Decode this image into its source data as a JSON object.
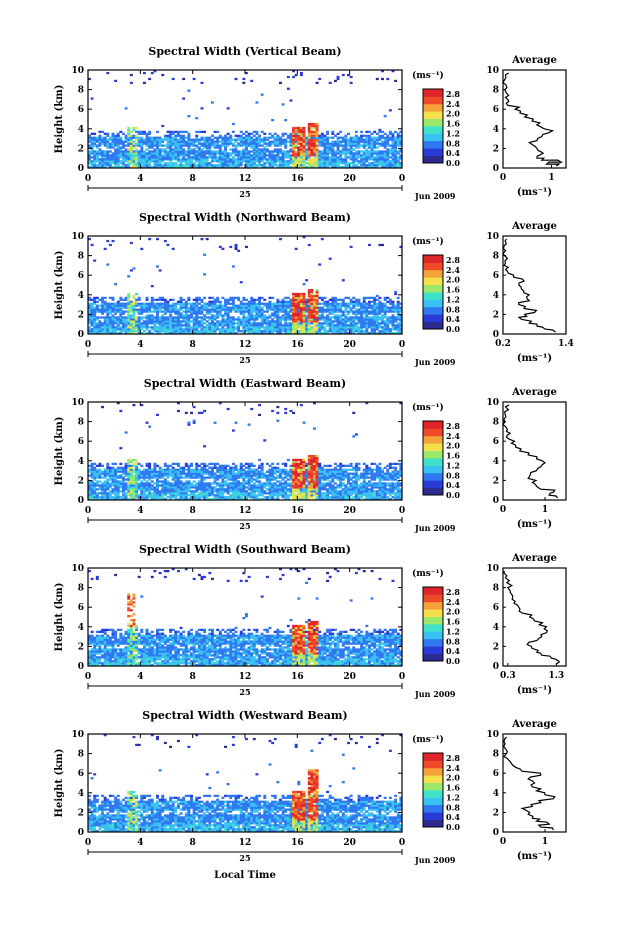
{
  "figure": {
    "xlabel_main": "Local Time",
    "date_label": "Jun 2009",
    "day_label": "25",
    "colorbar_unit": "(ms⁻¹)",
    "avg_title": "Average",
    "avg_xlabel": "(ms⁻¹)",
    "ylabel": "Height (km)",
    "colors": [
      "#2b2b8f",
      "#2a3ad6",
      "#2f78f0",
      "#39c1f2",
      "#3fe2c8",
      "#9be86a",
      "#f3e04a",
      "#f6a23a",
      "#ee4a2a",
      "#e0252a"
    ]
  },
  "chart_data": [
    {
      "type": "heatmap",
      "title": "Spectral Width (Vertical Beam)",
      "xlabel": "Local Time",
      "ylabel": "Height (km)",
      "x_ticks": [
        "0",
        "4",
        "8",
        "12",
        "16",
        "20",
        "0"
      ],
      "y_ticks": [
        "0",
        "2",
        "4",
        "6",
        "8",
        "10"
      ],
      "xlim": [
        0,
        24
      ],
      "ylim": [
        0,
        10
      ],
      "colorbar": {
        "label": "(ms⁻¹)",
        "ticks": [
          "0.0",
          "0.4",
          "0.8",
          "1.2",
          "1.6",
          "2.0",
          "2.4",
          "2.8"
        ],
        "range": [
          0,
          3.0
        ]
      },
      "average": {
        "x_ticks": [
          "0",
          "1"
        ],
        "xlim": [
          0,
          1.3
        ],
        "xlabel": "(ms⁻¹)",
        "height": [
          0.2,
          0.4,
          0.6,
          0.8,
          1.0,
          1.3,
          1.6,
          2.0,
          2.4,
          2.8,
          3.2,
          3.6,
          4.0,
          4.4,
          4.8,
          5.2,
          5.6,
          6.0,
          6.4,
          6.8,
          7.2,
          7.6,
          8.0,
          8.5,
          9.0,
          9.5
        ],
        "width": [
          1.1,
          0.9,
          1.2,
          0.8,
          0.7,
          0.75,
          0.8,
          0.7,
          0.6,
          0.7,
          0.8,
          0.95,
          0.85,
          0.7,
          0.6,
          0.45,
          0.35,
          0.25,
          0.1,
          0.12,
          0.05,
          0.08,
          0.04,
          0.06,
          0.03,
          0.05
        ]
      }
    },
    {
      "type": "heatmap",
      "title": "Spectral Width (Northward Beam)",
      "xlabel": "Local Time",
      "ylabel": "Height (km)",
      "x_ticks": [
        "0",
        "4",
        "8",
        "12",
        "16",
        "20",
        "0"
      ],
      "y_ticks": [
        "0",
        "2",
        "4",
        "6",
        "8",
        "10"
      ],
      "xlim": [
        0,
        24
      ],
      "ylim": [
        0,
        10
      ],
      "colorbar": {
        "label": "(ms⁻¹)",
        "ticks": [
          "0.0",
          "0.4",
          "0.8",
          "1.2",
          "1.6",
          "2.0",
          "2.4",
          "2.8"
        ],
        "range": [
          0,
          3.0
        ]
      },
      "average": {
        "x_ticks": [
          "0.2",
          "1.4"
        ],
        "xlim": [
          0.2,
          1.4
        ],
        "xlabel": "(ms⁻¹)",
        "height": [
          0.2,
          0.5,
          0.8,
          1.1,
          1.5,
          1.8,
          2.2,
          2.6,
          3.0,
          3.4,
          3.8,
          4.2,
          4.6,
          5.0,
          5.4,
          5.8,
          6.2,
          6.6,
          7.0,
          7.5,
          8.0,
          8.5,
          9.0,
          9.5
        ],
        "width": [
          1.2,
          1.0,
          0.85,
          0.7,
          0.55,
          0.65,
          0.8,
          0.6,
          0.5,
          0.7,
          0.65,
          0.6,
          0.55,
          0.5,
          0.6,
          0.4,
          0.3,
          0.25,
          0.22,
          0.24,
          0.23,
          0.25,
          0.22,
          0.24
        ]
      }
    },
    {
      "type": "heatmap",
      "title": "Spectral Width (Eastward Beam)",
      "xlabel": "Local Time",
      "ylabel": "Height (km)",
      "x_ticks": [
        "0",
        "4",
        "8",
        "12",
        "16",
        "20",
        "0"
      ],
      "y_ticks": [
        "0",
        "2",
        "4",
        "6",
        "8",
        "10"
      ],
      "xlim": [
        0,
        24
      ],
      "ylim": [
        0,
        10
      ],
      "colorbar": {
        "label": "(ms⁻¹)",
        "ticks": [
          "0.0",
          "0.4",
          "0.8",
          "1.2",
          "1.6",
          "2.0",
          "2.4",
          "2.8"
        ],
        "range": [
          0,
          3.0
        ]
      },
      "average": {
        "x_ticks": [
          "0",
          "1"
        ],
        "xlim": [
          0,
          1.5
        ],
        "xlabel": "(ms⁻¹)",
        "height": [
          0.2,
          0.5,
          0.8,
          1.1,
          1.4,
          1.8,
          2.2,
          2.6,
          3.0,
          3.4,
          3.8,
          4.2,
          4.6,
          5.0,
          5.4,
          5.8,
          6.2,
          6.6,
          7.0,
          7.5,
          8.0,
          8.5,
          9.0,
          9.5
        ],
        "width": [
          1.3,
          1.1,
          1.2,
          0.9,
          0.8,
          0.7,
          0.6,
          0.65,
          0.8,
          0.9,
          1.0,
          0.8,
          0.6,
          0.4,
          0.3,
          0.2,
          0.15,
          0.1,
          0.08,
          0.06,
          0.05,
          0.07,
          0.04,
          0.06
        ]
      }
    },
    {
      "type": "heatmap",
      "title": "Spectral Width (Southward Beam)",
      "xlabel": "Local Time",
      "ylabel": "Height (km)",
      "x_ticks": [
        "0",
        "4",
        "8",
        "12",
        "16",
        "20",
        "0"
      ],
      "y_ticks": [
        "0",
        "2",
        "4",
        "6",
        "8",
        "10"
      ],
      "xlim": [
        0,
        24
      ],
      "ylim": [
        0,
        10
      ],
      "colorbar": {
        "label": "(ms⁻¹)",
        "ticks": [
          "0.0",
          "0.4",
          "0.8",
          "1.2",
          "1.6",
          "2.0",
          "2.4",
          "2.8"
        ],
        "range": [
          0,
          3.0
        ]
      },
      "average": {
        "x_ticks": [
          "0.3",
          "1.3"
        ],
        "xlim": [
          0.2,
          1.5
        ],
        "xlabel": "(ms⁻¹)",
        "height": [
          0.2,
          0.5,
          0.8,
          1.1,
          1.4,
          1.8,
          2.2,
          2.6,
          3.0,
          3.4,
          3.8,
          4.2,
          4.6,
          5.0,
          5.4,
          5.8,
          6.2,
          6.6,
          7.0,
          7.5,
          8.0,
          8.5,
          9.0,
          9.5
        ],
        "width": [
          1.3,
          1.35,
          1.2,
          1.0,
          0.9,
          0.8,
          0.7,
          0.9,
          1.0,
          1.1,
          1.05,
          0.95,
          0.85,
          0.75,
          0.6,
          0.55,
          0.5,
          0.45,
          0.4,
          0.35,
          0.3,
          0.28,
          0.25,
          0.22
        ]
      }
    },
    {
      "type": "heatmap",
      "title": "Spectral Width (Westward Beam)",
      "xlabel": "Local Time",
      "ylabel": "Height (km)",
      "x_ticks": [
        "0",
        "4",
        "8",
        "12",
        "16",
        "20",
        "0"
      ],
      "y_ticks": [
        "0",
        "2",
        "4",
        "6",
        "8",
        "10"
      ],
      "xlim": [
        0,
        24
      ],
      "ylim": [
        0,
        10
      ],
      "colorbar": {
        "label": "(ms⁻¹)",
        "ticks": [
          "0.0",
          "0.4",
          "0.8",
          "1.2",
          "1.6",
          "2.0",
          "2.4",
          "2.8"
        ],
        "range": [
          0,
          3.0
        ]
      },
      "average": {
        "x_ticks": [
          "0",
          "1"
        ],
        "xlim": [
          0,
          1.5
        ],
        "xlabel": "(ms⁻¹)",
        "height": [
          0.2,
          0.5,
          0.8,
          1.1,
          1.4,
          1.8,
          2.2,
          2.6,
          3.0,
          3.4,
          3.8,
          4.2,
          4.6,
          5.0,
          5.4,
          5.8,
          6.2,
          6.6,
          7.0,
          7.5,
          8.0,
          8.5,
          9.0,
          9.5
        ],
        "width": [
          1.2,
          0.9,
          1.1,
          0.8,
          0.7,
          0.6,
          0.55,
          0.7,
          0.9,
          1.2,
          1.0,
          0.8,
          0.7,
          0.75,
          0.6,
          0.9,
          0.45,
          0.3,
          0.2,
          0.1,
          0.08,
          0.06,
          0.05,
          0.04
        ]
      }
    }
  ]
}
